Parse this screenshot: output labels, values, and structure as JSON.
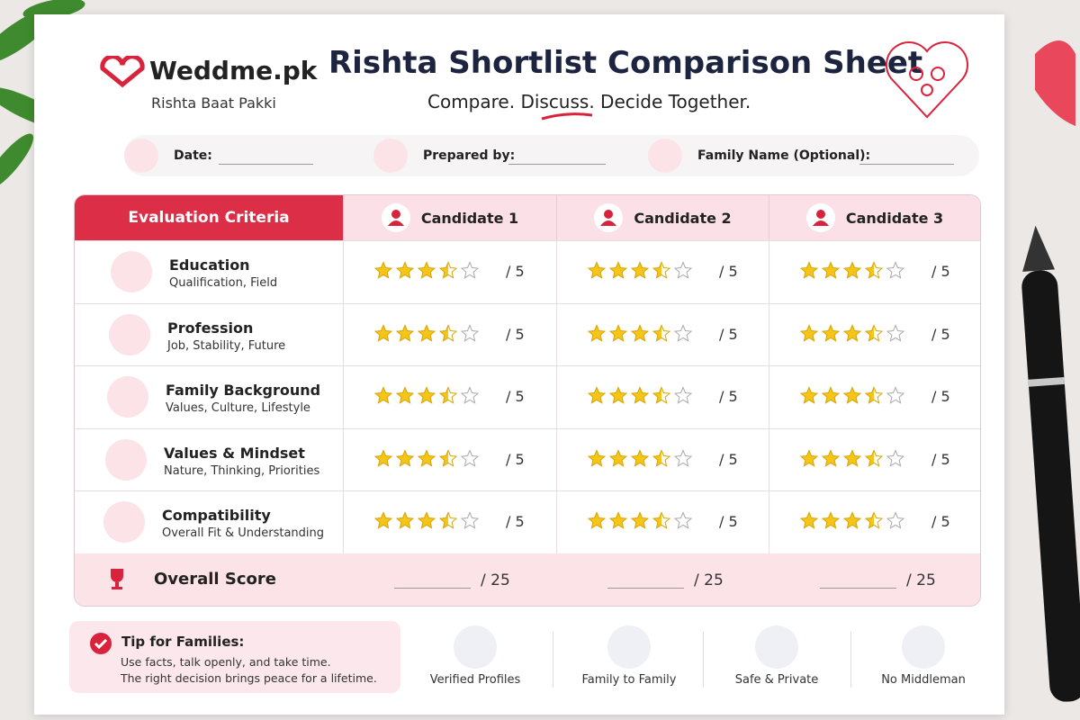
{
  "header": {
    "logo": "Weddme.pk",
    "tagline": "Rishta Baat Pakki",
    "title": "Rishta Shortlist Comparison Sheet",
    "subtitle": "Compare. Discuss. Decide Together."
  },
  "fields": [
    "Date:",
    "Prepared by:",
    "Family Name (Optional):"
  ],
  "table": {
    "header": "Evaluation Criteria",
    "candidates": [
      "Candidate 1",
      "Candidate 2",
      "Candidate 3"
    ],
    "star_count": 5,
    "rows": [
      {
        "title": "Education",
        "desc": "Qualification, Field",
        "ratings": [
          3.5,
          3.5,
          3.5
        ],
        "scale": "/ 5"
      },
      {
        "title": "Profession",
        "desc": "Job, Stability, Future",
        "ratings": [
          3.5,
          3.5,
          3.5
        ],
        "scale": "/ 5"
      },
      {
        "title": "Family Background",
        "desc": "Values, Culture, Lifestyle",
        "ratings": [
          3.5,
          3.5,
          3.5
        ],
        "scale": "/ 5"
      },
      {
        "title": "Values & Mindset",
        "desc": "Nature, Thinking, Priorities",
        "ratings": [
          3.5,
          3.5,
          3.5
        ],
        "scale": "/ 5"
      },
      {
        "title": "Compatibility",
        "desc": "Overall Fit & Understanding",
        "ratings": [
          3.5,
          3.5,
          3.5
        ],
        "scale": "/ 5"
      }
    ],
    "total": {
      "label": "Overall Score",
      "scale": "/ 25"
    }
  },
  "tip": {
    "title": "Tip for Families:",
    "lines": [
      "Use facts, talk openly, and take time.",
      "The right decision brings peace for a lifetime."
    ]
  },
  "features": [
    "Verified Profiles",
    "Family to Family",
    "Safe & Private",
    "No Middleman"
  ]
}
